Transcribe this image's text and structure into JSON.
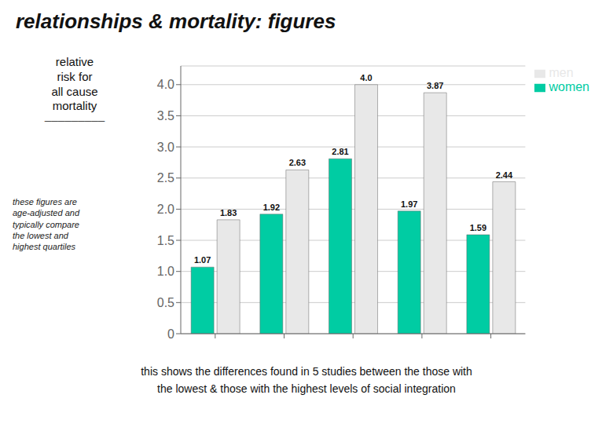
{
  "chart_data": {
    "type": "bar",
    "title": "relationships & mortality: figures",
    "ylabel": "relative\nrisk for\nall cause\nmortality",
    "annotations": [
      "─────────",
      "these figures are\nage-adjusted and\ntypically compare\nthe lowest and\nhighest quartiles",
      "this shows the differences found in 5 studies between the those with",
      "the lowest & those with the highest levels of social integration"
    ],
    "categories": [
      null,
      null,
      null,
      null,
      null
    ],
    "series": [
      {
        "name": "women",
        "color": "#00CCA3",
        "values": [
          1.07,
          1.92,
          2.81,
          1.97,
          1.59
        ]
      },
      {
        "name": "men",
        "color": "#E8E8E8",
        "values": [
          1.83,
          2.63,
          4.0,
          3.87,
          2.44
        ],
        "value_labels": [
          "1.83",
          "2.63",
          "4.0",
          "3.87",
          "2.44"
        ]
      }
    ],
    "ylim": [
      0,
      4.3
    ],
    "yticks": [
      0,
      0.5,
      {
        "value": 1.0,
        "label": "1.0"
      },
      1.5,
      {
        "value": 2.0,
        "label": "2.0"
      },
      2.5,
      {
        "value": 3.0,
        "label": "3.0"
      },
      3.5,
      {
        "value": 4.0,
        "label": "4.0"
      }
    ],
    "grid": true,
    "legend": "upper right",
    "data_labels": true
  }
}
